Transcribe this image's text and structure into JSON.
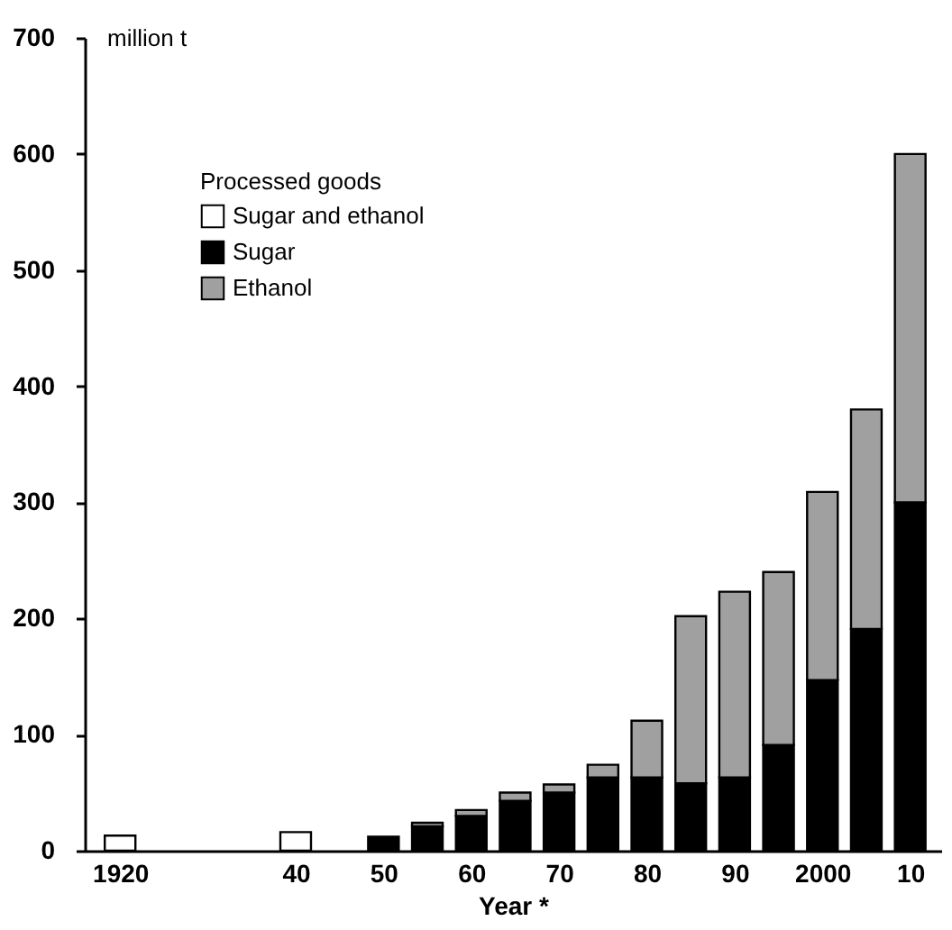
{
  "chart_data": {
    "type": "bar",
    "stacked": true,
    "xlabel": "Year *",
    "ylabel": "million t",
    "legend_title": "Processed goods",
    "x": [
      1920,
      1940,
      1950,
      1955,
      1960,
      1965,
      1970,
      1975,
      1980,
      1985,
      1990,
      1995,
      2000,
      2005,
      2010
    ],
    "series": [
      {
        "name": "Sugar and ethanol",
        "color": "#ffffff",
        "values": [
          13,
          16,
          null,
          null,
          null,
          null,
          null,
          null,
          null,
          null,
          null,
          null,
          null,
          null,
          null
        ]
      },
      {
        "name": "Sugar",
        "color": "#000000",
        "values": [
          null,
          null,
          12,
          21,
          30,
          43,
          50,
          63,
          63,
          58,
          63,
          91,
          147,
          191,
          300
        ]
      },
      {
        "name": "Ethanol",
        "color": "#a0a0a0",
        "values": [
          null,
          null,
          null,
          3,
          5,
          7,
          7,
          11,
          49,
          144,
          160,
          149,
          162,
          189,
          300
        ]
      }
    ],
    "xlim": [
      1917,
      2012.5
    ],
    "xticks": [
      1920,
      {
        "value": 1940,
        "label": "40"
      },
      {
        "value": 1950,
        "label": "50"
      },
      {
        "value": 1960,
        "label": "60"
      },
      {
        "value": 1970,
        "label": "70"
      },
      {
        "value": 1980,
        "label": "80"
      },
      {
        "value": 1990,
        "label": "90"
      },
      2000,
      {
        "value": 2010,
        "label": "10"
      }
    ],
    "ylim": [
      0,
      700
    ],
    "yticks": [
      0,
      100,
      200,
      300,
      400,
      500,
      600,
      700
    ],
    "grid": false,
    "legend": "top left"
  }
}
